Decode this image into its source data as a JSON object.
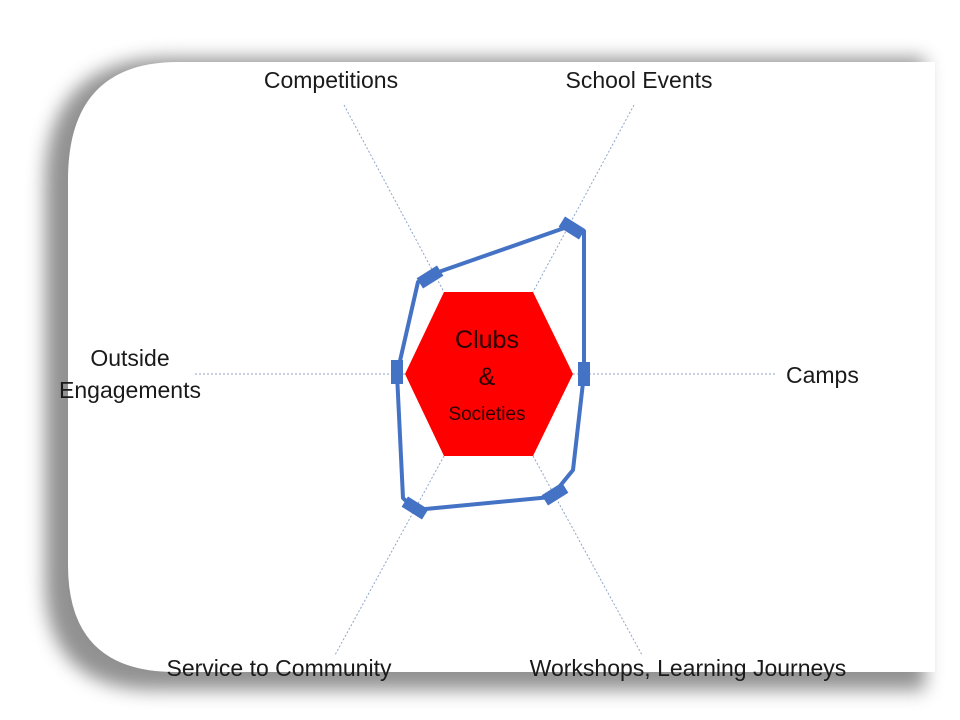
{
  "center": {
    "line1": "Clubs",
    "line2": "&",
    "line3": "Societies"
  },
  "axes": {
    "competitions": "Competitions",
    "school_events": "School Events",
    "camps": "Camps",
    "outside_engagements_line1": "Outside",
    "outside_engagements_line2": "Engagements",
    "service_to_community": "Service to Community",
    "workshops": "Workshops, Learning Journeys"
  },
  "colors": {
    "hexagon_fill": "#ff0000",
    "hexagon_text": "#2b0000",
    "outline": "#4472c4",
    "axis_line": "#8ea6c8",
    "label_text": "#1a1a1a",
    "card_shadow": "#6d6d6d"
  }
}
